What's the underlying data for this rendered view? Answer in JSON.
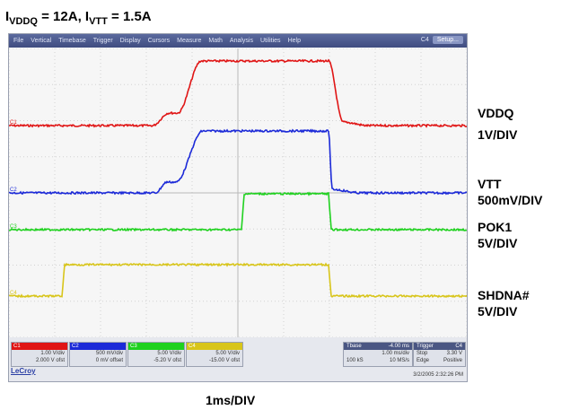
{
  "heading": {
    "part1": "I",
    "sub1": "VDDQ",
    "part2": " = 12A, I",
    "sub2": "VTT",
    "part3": " = 1.5A"
  },
  "menu": {
    "items": [
      "File",
      "Vertical",
      "Timebase",
      "Trigger",
      "Display",
      "Cursors",
      "Measure",
      "Math",
      "Analysis",
      "Utilities",
      "Help"
    ],
    "channel": "C4",
    "setup_label": "Setup..."
  },
  "traces": [
    {
      "name": "VDDQ",
      "color": "#e01515",
      "label1": "VDDQ",
      "label2": "1V/DIV",
      "marker": "C1"
    },
    {
      "name": "VTT",
      "color": "#1c2ad8",
      "label1": "VTT",
      "label2": "500mV/DIV",
      "marker": "C2"
    },
    {
      "name": "POK1",
      "color": "#1fd11f",
      "label1": "POK1",
      "label2": "5V/DIV",
      "marker": "C3"
    },
    {
      "name": "SHDNA#",
      "color": "#d8c51a",
      "label1": "SHDNA#",
      "label2": "5V/DIV",
      "marker": "C4"
    }
  ],
  "channels": [
    {
      "id": "C1",
      "color": "#e01515",
      "line1": "1.00 V/div",
      "line2": "2.000 V ofst"
    },
    {
      "id": "C2",
      "color": "#1c2ad8",
      "line1": "500 mV/div",
      "line2": "0 mV offset"
    },
    {
      "id": "C3",
      "color": "#1fd11f",
      "line1": "5.00 V/div",
      "line2": "-5.20 V ofst"
    },
    {
      "id": "C4",
      "color": "#d8c51a",
      "line1": "5.00 V/div",
      "line2": "-15.00 V ofst"
    }
  ],
  "timebase": {
    "label": "Tbase",
    "value": "-4.00 ms",
    "l1": "1.00 ms/div",
    "l2a": "100 kS",
    "l2b": "10 MS/s"
  },
  "trigger": {
    "label": "Trigger",
    "channel": "C4",
    "l1": "Stop",
    "l1v": "3.30 V",
    "l2": "Edge",
    "l2v": "Positive"
  },
  "brand": "LeCroy",
  "timestamp": "3/2/2005 2:32:26 PM",
  "time_div": "1ms/DIV"
}
